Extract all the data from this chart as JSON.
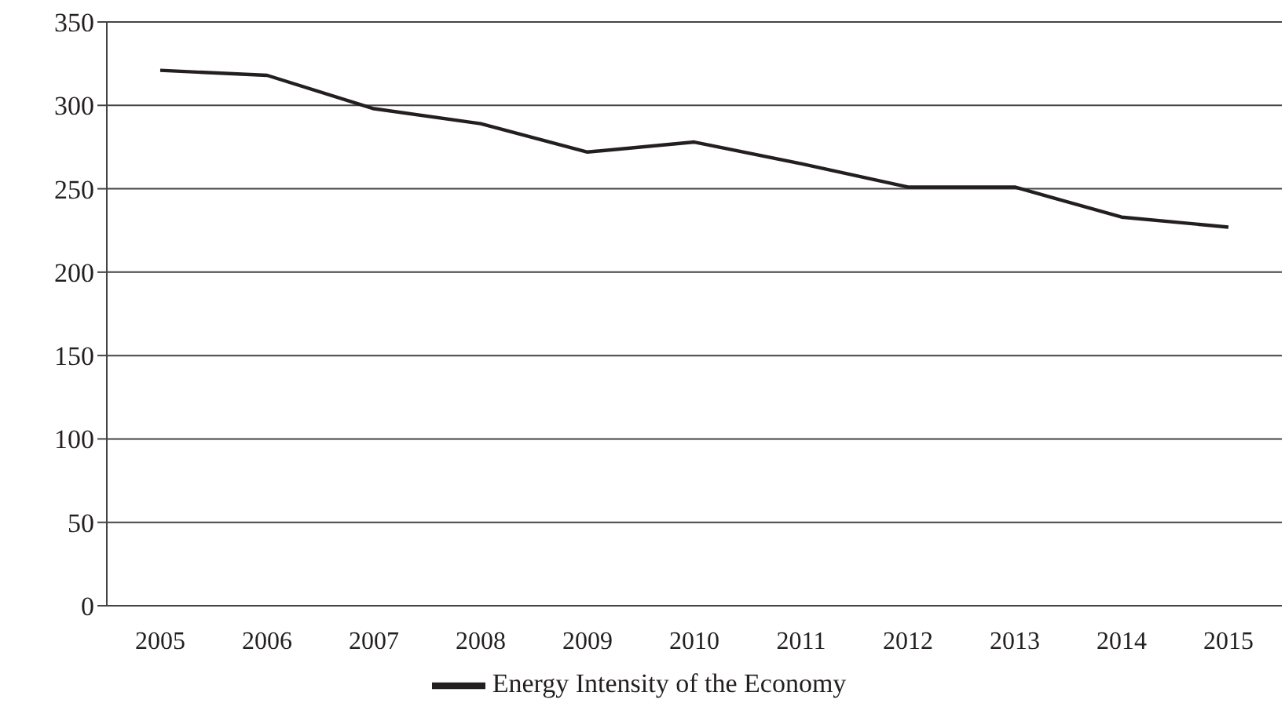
{
  "chart_data": {
    "type": "line",
    "categories": [
      "2005",
      "2006",
      "2007",
      "2008",
      "2009",
      "2010",
      "2011",
      "2012",
      "2013",
      "2014",
      "2015"
    ],
    "series": [
      {
        "name": "Energy Intensity of the Economy",
        "color": "#231f20",
        "values": [
          321,
          318,
          298,
          289,
          272,
          278,
          265,
          251,
          251,
          233,
          227
        ]
      }
    ],
    "ylim": [
      0,
      350
    ],
    "yticks": [
      0,
      50,
      100,
      150,
      200,
      250,
      300,
      350
    ],
    "grid": "y",
    "legend": "bottom",
    "marker": "none"
  }
}
